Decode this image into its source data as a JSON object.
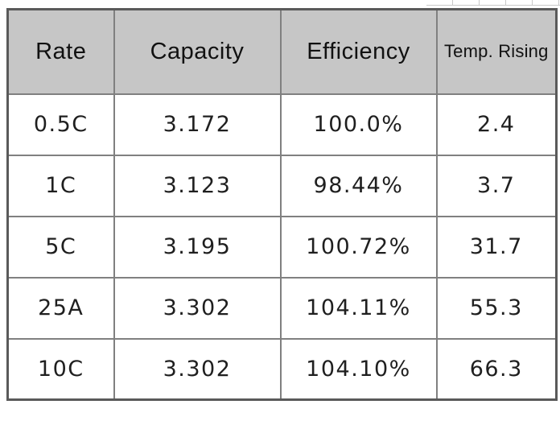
{
  "colors": {
    "header_bg": "#c6c6c6",
    "grid_line": "#808080",
    "outer_border": "#5a5a5a",
    "text": "#1f1f1f"
  },
  "chart_data": {
    "type": "table",
    "columns": [
      "Rate",
      "Capacity",
      "Efficiency",
      "Temp. Rising"
    ],
    "rows": [
      [
        "0.5C",
        "3.172",
        "100.0%",
        "2.4"
      ],
      [
        "1C",
        "3.123",
        "98.44%",
        "3.7"
      ],
      [
        "5C",
        "3.195",
        "100.72%",
        "31.7"
      ],
      [
        "25A",
        "3.302",
        "104.11%",
        "55.3"
      ],
      [
        "10C",
        "3.302",
        "104.10%",
        "66.3"
      ]
    ]
  }
}
